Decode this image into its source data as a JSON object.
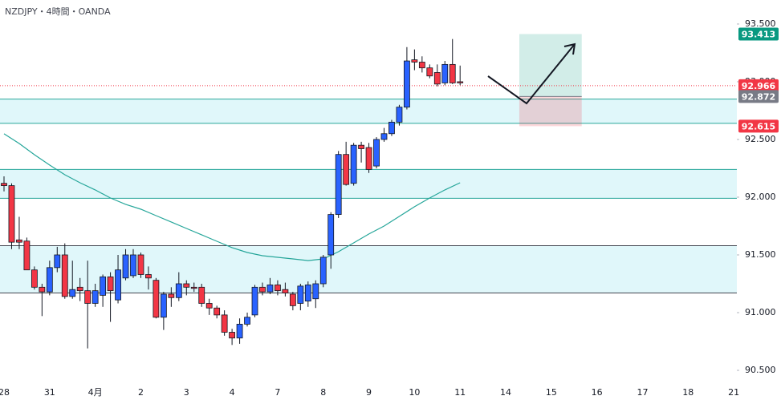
{
  "chart_data": {
    "type": "candlestick",
    "title": "NZDJPY・4時間・OANDA",
    "ylim": [
      90.389,
      93.708
    ],
    "yticks": [
      {
        "value": 90.5,
        "label": "90.500"
      },
      {
        "value": 91,
        "label": "91.000"
      },
      {
        "value": 91.5,
        "label": "91.500"
      },
      {
        "value": 92,
        "label": "92.000"
      },
      {
        "value": 92.5,
        "label": "92.500"
      },
      {
        "value": 93,
        "label": "93.000"
      },
      {
        "value": 93.5,
        "label": "93.500"
      }
    ],
    "xticks": [
      "28",
      "31",
      "4月",
      "2",
      "3",
      "4",
      "7",
      "8",
      "9",
      "10",
      "11",
      "14",
      "15",
      "16",
      "17",
      "18",
      "21"
    ],
    "up_color": "#2962ff",
    "down_color": "#f23645",
    "open": [
      92.12,
      92.1,
      91.63,
      91.62,
      91.37,
      91.22,
      91.18,
      91.39,
      91.5,
      91.14,
      91.22,
      91.19,
      91.08,
      91.15,
      91.31,
      91.11,
      91.3,
      91.32,
      91.5,
      91.33,
      91.28,
      90.96,
      91.16,
      91.13,
      91.25,
      91.22,
      91.22,
      91.08,
      91.04,
      90.98,
      90.83,
      90.78,
      90.9,
      90.98,
      91.22,
      91.18,
      91.24,
      91.2,
      91.16,
      91.08,
      91.1,
      91.12,
      91.25,
      91.5,
      91.85,
      92.37,
      92.12,
      92.45,
      92.43,
      92.27,
      92.5,
      92.55,
      92.65,
      92.78,
      93.19,
      93.17,
      93.12,
      93.08,
      92.99,
      93.15,
      93.0
    ],
    "high": [
      92.18,
      92.12,
      91.83,
      91.65,
      91.4,
      91.25,
      91.45,
      91.57,
      91.6,
      91.45,
      91.3,
      91.45,
      91.25,
      91.33,
      91.35,
      91.5,
      91.55,
      91.55,
      91.52,
      91.4,
      91.3,
      91.18,
      91.22,
      91.35,
      91.28,
      91.26,
      91.25,
      91.12,
      91.06,
      91.02,
      90.86,
      90.95,
      91.0,
      91.24,
      91.26,
      91.3,
      91.28,
      91.26,
      91.18,
      91.25,
      91.27,
      91.28,
      91.5,
      91.87,
      92.4,
      92.48,
      92.47,
      92.48,
      92.47,
      92.52,
      92.6,
      92.67,
      92.8,
      93.3,
      93.28,
      93.22,
      93.15,
      93.15,
      93.18,
      93.37,
      93.14
    ],
    "low": [
      92.05,
      91.55,
      91.55,
      91.37,
      91.2,
      90.97,
      91.15,
      91.35,
      91.12,
      91.12,
      91.1,
      90.69,
      91.05,
      91.05,
      90.92,
      91.08,
      91.28,
      91.3,
      91.3,
      91.2,
      90.95,
      90.85,
      91.05,
      91.1,
      91.15,
      91.18,
      91.05,
      90.98,
      90.95,
      90.8,
      90.72,
      90.73,
      90.88,
      90.96,
      91.15,
      91.16,
      91.15,
      91.14,
      91.02,
      91.02,
      91.05,
      91.04,
      91.22,
      91.38,
      91.82,
      92.1,
      92.1,
      92.3,
      92.21,
      92.25,
      92.48,
      92.53,
      92.62,
      92.76,
      93.1,
      93.08,
      93.03,
      92.96,
      92.97,
      92.98,
      92.97
    ],
    "close": [
      92.1,
      91.61,
      91.61,
      91.37,
      91.22,
      91.18,
      91.39,
      91.5,
      91.14,
      91.2,
      91.19,
      91.08,
      91.19,
      91.31,
      91.19,
      91.37,
      91.5,
      91.5,
      91.33,
      91.3,
      90.96,
      91.16,
      91.13,
      91.25,
      91.22,
      91.21,
      91.08,
      91.04,
      90.98,
      90.83,
      90.78,
      90.9,
      90.96,
      91.22,
      91.18,
      91.24,
      91.19,
      91.17,
      91.06,
      91.23,
      91.24,
      91.25,
      91.48,
      91.85,
      92.37,
      92.11,
      92.45,
      92.42,
      92.24,
      92.5,
      92.55,
      92.65,
      92.78,
      93.18,
      93.17,
      93.12,
      93.05,
      92.98,
      93.15,
      92.99,
      92.99
    ],
    "ma": {
      "color": "#26a69a",
      "x": [
        0,
        2,
        4,
        6,
        8,
        10,
        12,
        14,
        16,
        18,
        20,
        22,
        24,
        26,
        28,
        30,
        32,
        34,
        36,
        38,
        40,
        42,
        44,
        46,
        48,
        50,
        52,
        54,
        56,
        58,
        60
      ],
      "values": [
        92.549,
        92.465,
        92.368,
        92.278,
        92.194,
        92.125,
        92.063,
        91.993,
        91.938,
        91.896,
        91.84,
        91.785,
        91.729,
        91.674,
        91.618,
        91.563,
        91.521,
        91.493,
        91.479,
        91.465,
        91.451,
        91.465,
        91.528,
        91.604,
        91.681,
        91.75,
        91.833,
        91.917,
        91.993,
        92.063,
        92.125
      ]
    },
    "zones": [
      {
        "top": 92.85,
        "bottom": 92.64,
        "border": "#26a69a"
      },
      {
        "top": 92.24,
        "bottom": 91.99,
        "border": "#26a69a"
      },
      {
        "top": 91.58,
        "bottom": 91.17,
        "border": "#434651"
      }
    ],
    "zone_fill": "#e0f7fa",
    "last_price": {
      "value": 92.966,
      "color": "#f23645"
    },
    "position": {
      "entry": 92.872,
      "target": 93.413,
      "stop": 92.615,
      "entry_color": "#787b86",
      "target_color": "#089981",
      "stop_color": "#f23645"
    }
  }
}
